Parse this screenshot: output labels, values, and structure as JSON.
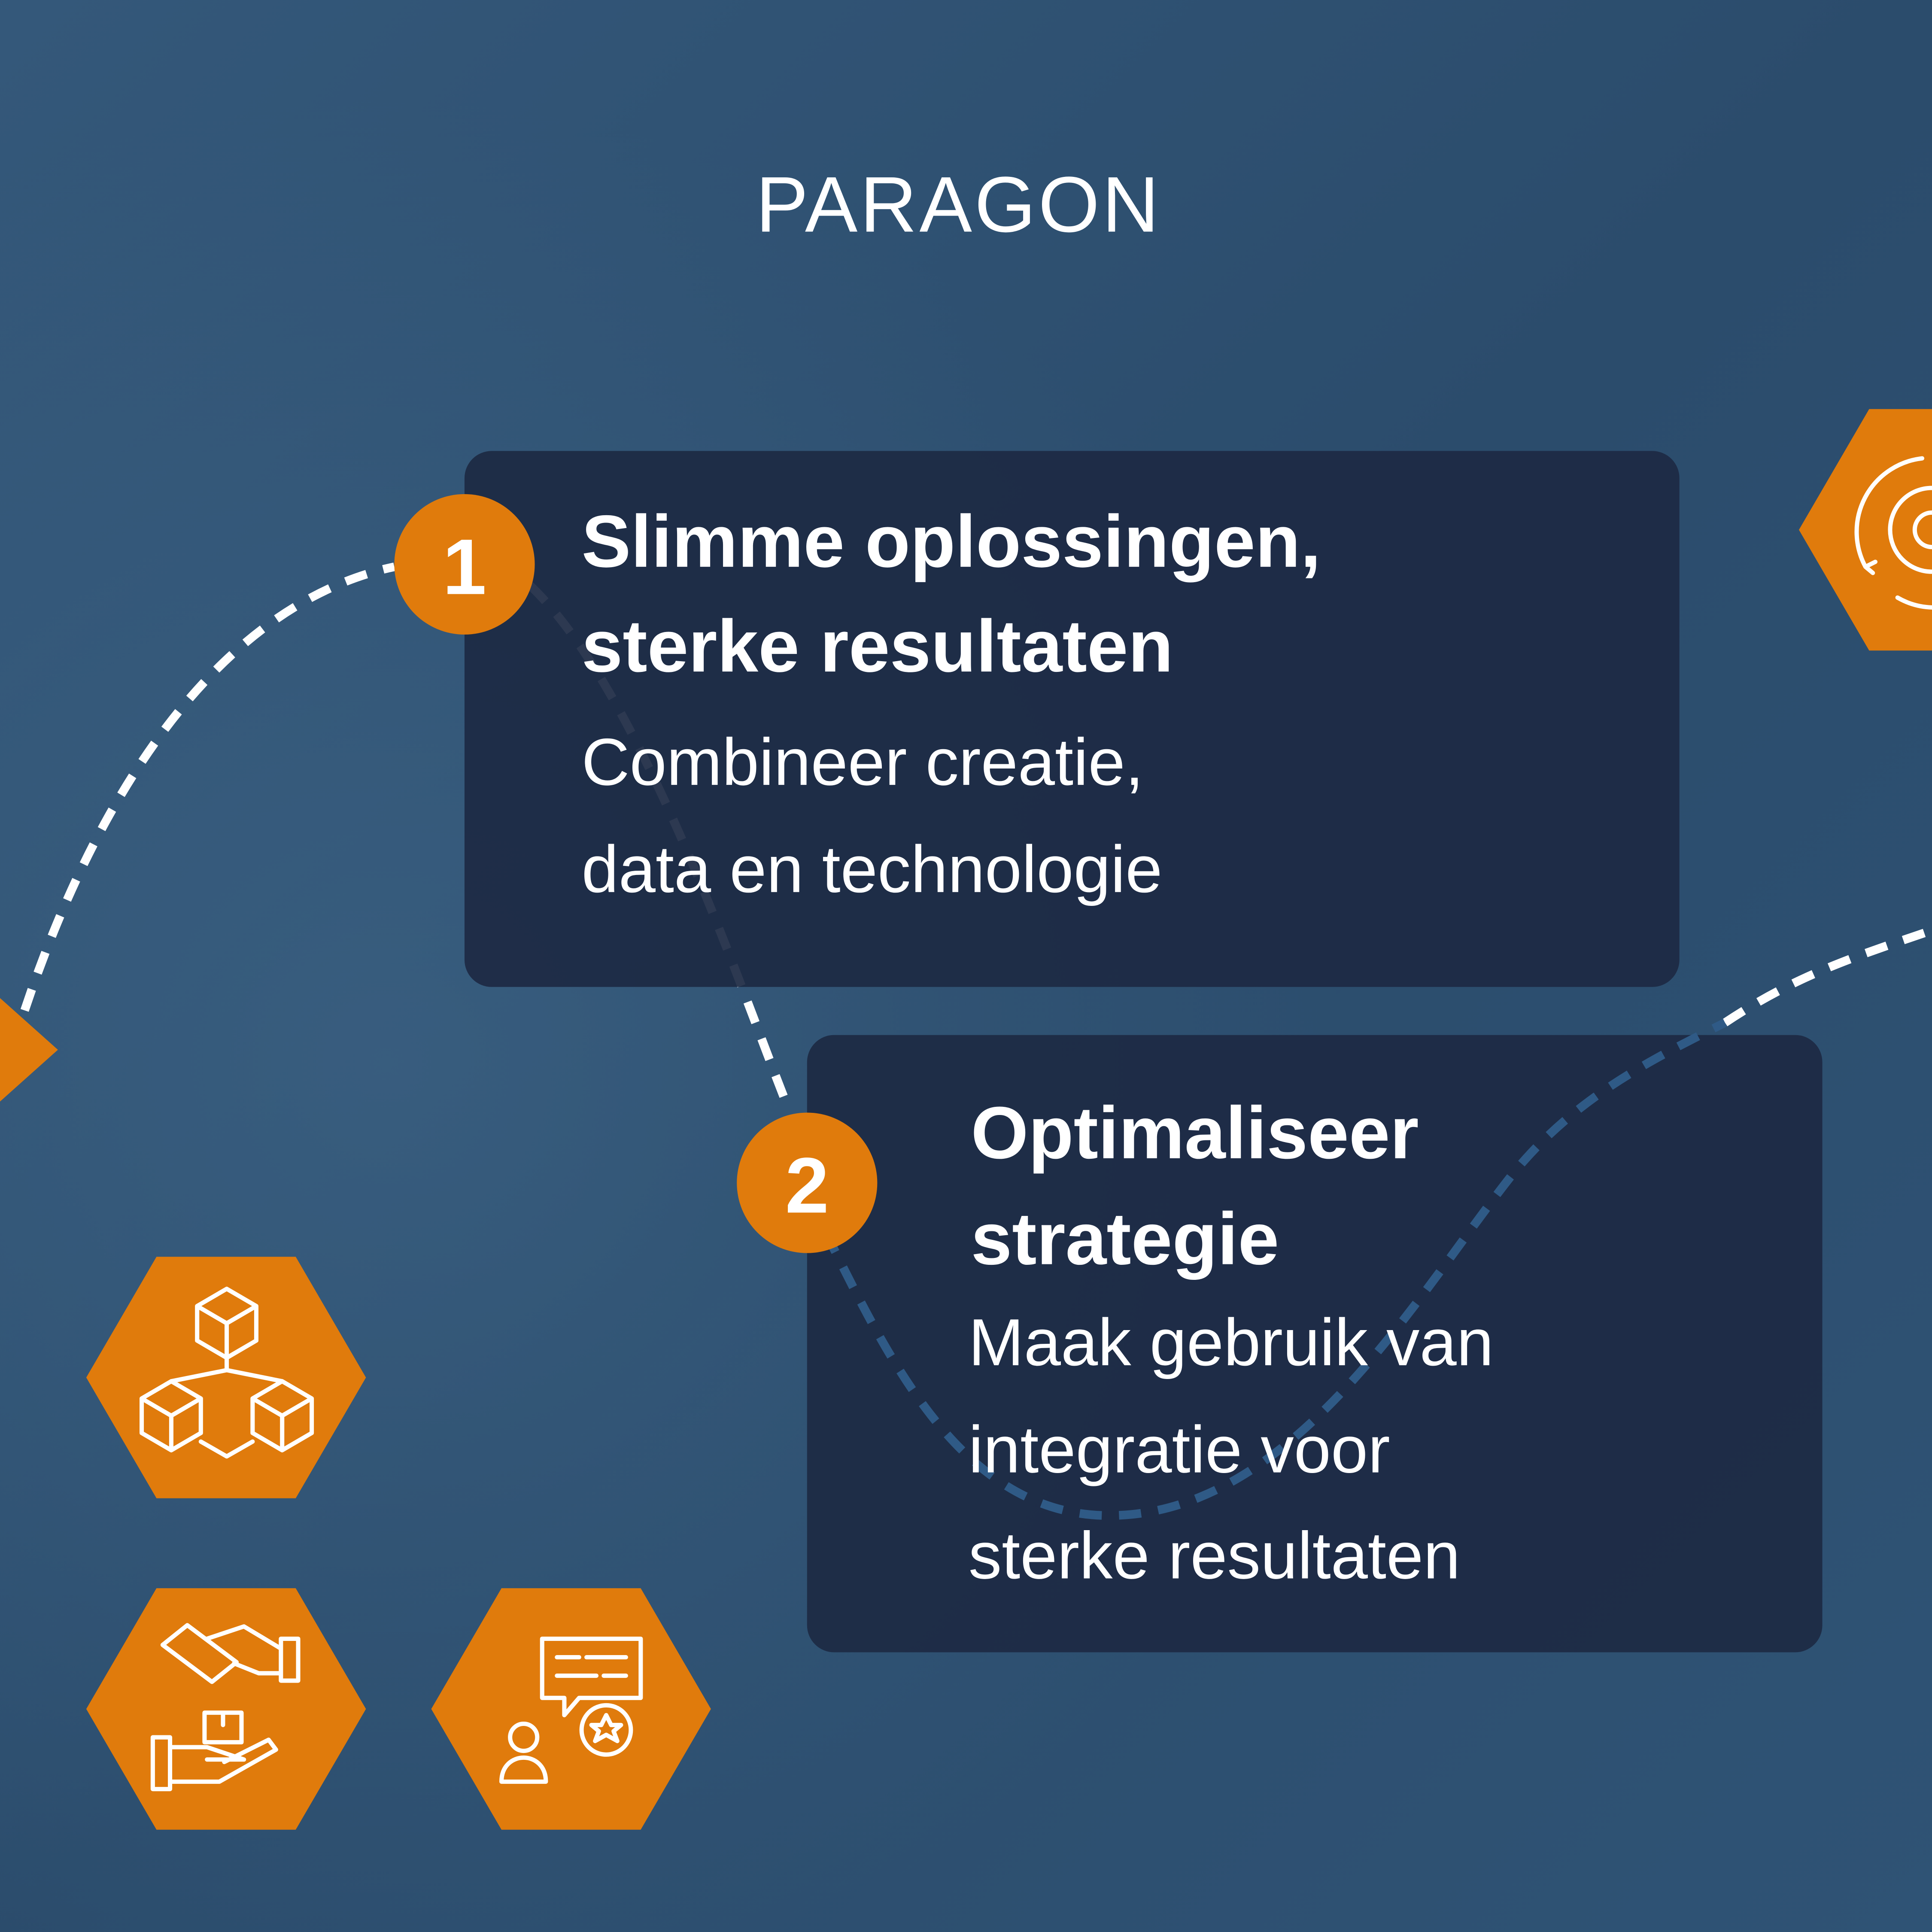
{
  "logo": "PARAGON",
  "steps": [
    {
      "number": "1",
      "title": [
        "Slimme oplossingen,",
        "sterke resultaten"
      ],
      "description": [
        "Combineer creatie,",
        "data en technologie"
      ]
    },
    {
      "number": "2",
      "title": [
        "Optimaliseer",
        "strategie"
      ],
      "description": [
        "Maak gebruik van",
        "integratie voor",
        "sterke resultaten"
      ]
    }
  ]
}
